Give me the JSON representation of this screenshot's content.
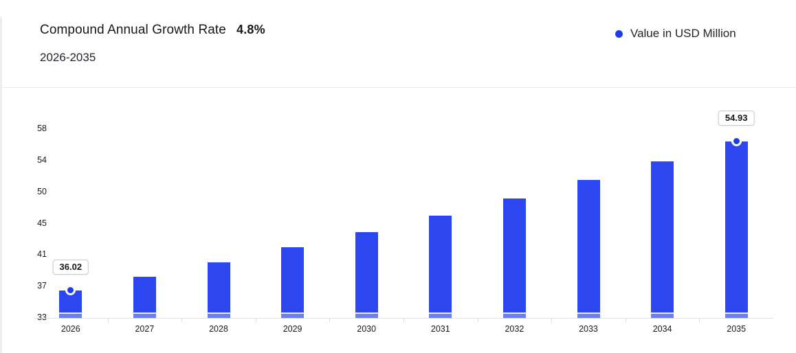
{
  "header": {
    "title": "Compound Annual Growth Rate",
    "cagr": "4.8%",
    "period": "2026-2035"
  },
  "legend": {
    "label": "Value in USD Million",
    "marker_color": "#1c3fe4"
  },
  "colors": {
    "bar": "#2d47f0",
    "marker_dot": "#1d3ce8",
    "axis_line": "#dfe1e5"
  },
  "chart_data": {
    "type": "bar",
    "title": "Compound Annual Growth Rate 4.8%",
    "subtitle": "2026-2035",
    "categories": [
      "2026",
      "2027",
      "2028",
      "2029",
      "2030",
      "2031",
      "2032",
      "2033",
      "2034",
      "2035"
    ],
    "series": [
      {
        "name": "Value in USD Million",
        "values": [
          36.02,
          37.75,
          39.56,
          41.46,
          43.45,
          45.54,
          47.72,
          50.01,
          52.41,
          54.93
        ]
      }
    ],
    "yticks": [
      33,
      37,
      41,
      45,
      50,
      54,
      58
    ],
    "ylim": [
      33,
      58
    ],
    "grid": false,
    "legend_position": "top-right",
    "callouts": [
      {
        "index": 0,
        "label": "36.02"
      },
      {
        "index": 9,
        "label": "54.93"
      }
    ]
  }
}
